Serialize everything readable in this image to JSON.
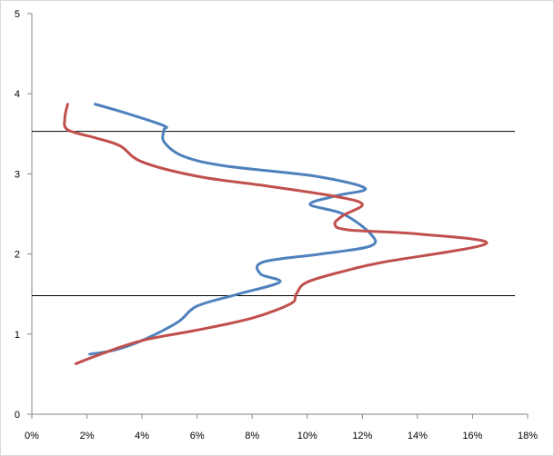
{
  "chart_data": {
    "type": "line",
    "title": "",
    "xlabel": "",
    "ylabel": "",
    "xlim": [
      0,
      18
    ],
    "ylim": [
      0,
      5
    ],
    "x_ticks": [
      "0%",
      "2%",
      "4%",
      "6%",
      "8%",
      "10%",
      "12%",
      "14%",
      "16%",
      "18%"
    ],
    "y_ticks": [
      "0",
      "1",
      "2",
      "3",
      "4",
      "5"
    ],
    "grid": false,
    "legend": "none",
    "series": [
      {
        "color": "#4f81bd",
        "points": [
          [
            2.1,
            0.75
          ],
          [
            3.0,
            0.8
          ],
          [
            4.0,
            0.92
          ],
          [
            5.3,
            1.15
          ],
          [
            6.0,
            1.35
          ],
          [
            7.5,
            1.5
          ],
          [
            9.0,
            1.65
          ],
          [
            8.3,
            1.75
          ],
          [
            8.4,
            1.9
          ],
          [
            10.5,
            2.0
          ],
          [
            12.3,
            2.1
          ],
          [
            12.3,
            2.25
          ],
          [
            11.3,
            2.5
          ],
          [
            10.1,
            2.62
          ],
          [
            11.1,
            2.73
          ],
          [
            12.1,
            2.82
          ],
          [
            10.3,
            2.97
          ],
          [
            7.0,
            3.1
          ],
          [
            5.5,
            3.22
          ],
          [
            4.8,
            3.4
          ],
          [
            4.8,
            3.55
          ],
          [
            4.8,
            3.6
          ],
          [
            3.5,
            3.75
          ],
          [
            2.3,
            3.87
          ]
        ]
      },
      {
        "color": "#c0504d",
        "points": [
          [
            1.6,
            0.63
          ],
          [
            2.5,
            0.75
          ],
          [
            4.0,
            0.92
          ],
          [
            6.0,
            1.05
          ],
          [
            8.0,
            1.2
          ],
          [
            9.4,
            1.38
          ],
          [
            9.6,
            1.5
          ],
          [
            10.0,
            1.65
          ],
          [
            11.5,
            1.8
          ],
          [
            12.8,
            1.9
          ],
          [
            16.5,
            2.13
          ],
          [
            14.0,
            2.25
          ],
          [
            11.5,
            2.3
          ],
          [
            11.0,
            2.37
          ],
          [
            11.3,
            2.48
          ],
          [
            12.0,
            2.62
          ],
          [
            11.0,
            2.72
          ],
          [
            8.5,
            2.85
          ],
          [
            6.0,
            2.97
          ],
          [
            4.0,
            3.15
          ],
          [
            3.2,
            3.35
          ],
          [
            2.3,
            3.45
          ],
          [
            1.3,
            3.55
          ],
          [
            1.2,
            3.7
          ],
          [
            1.3,
            3.87
          ]
        ]
      }
    ],
    "reference_lines_y": [
      1.48,
      3.53
    ]
  }
}
